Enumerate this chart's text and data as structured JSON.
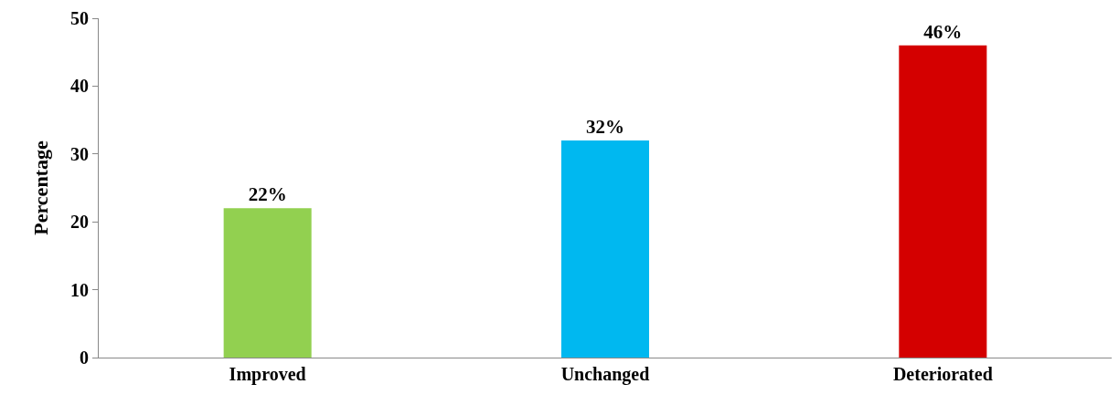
{
  "chart_data": {
    "type": "bar",
    "ylabel": "Percentage",
    "categories": [
      "Improved",
      "Unchanged",
      "Deteriorated"
    ],
    "values": [
      22,
      32,
      46
    ],
    "colors": [
      "#92d050",
      "#00b8f0",
      "#d40000"
    ],
    "value_labels": [
      "22%",
      "32%",
      "46%"
    ],
    "ylim": [
      0,
      50
    ],
    "yticks": [
      0,
      10,
      20,
      30,
      40,
      50
    ]
  }
}
